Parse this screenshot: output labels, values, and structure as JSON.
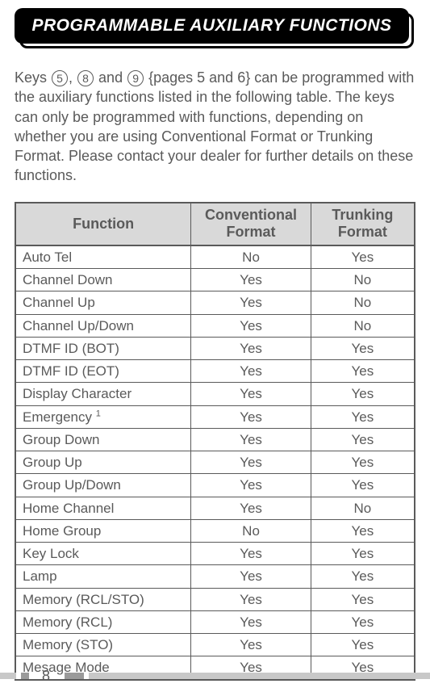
{
  "title": "PROGRAMMABLE AUXILIARY FUNCTIONS",
  "intro": {
    "prefix": "Keys ",
    "k1": "5",
    "sep1": ", ",
    "k2": "8",
    "sep2": " and ",
    "k3": "9",
    "suffix": " {pages 5 and 6} can be programmed with the auxiliary functions listed in the following table. The keys can only be programmed with functions, depending on whether you are using Conventional Format or Trunking Format.  Please contact your dealer for further details on these functions."
  },
  "table": {
    "headers": {
      "function": "Function",
      "conventional_l1": "Conventional",
      "conventional_l2": "Format",
      "trunking_l1": "Trunking",
      "trunking_l2": "Format"
    },
    "rows": [
      {
        "fn": "Auto Tel",
        "conv": "No",
        "trunk": "Yes"
      },
      {
        "fn": "Channel Down",
        "conv": "Yes",
        "trunk": "No"
      },
      {
        "fn": "Channel Up",
        "conv": "Yes",
        "trunk": "No"
      },
      {
        "fn": "Channel Up/Down",
        "conv": "Yes",
        "trunk": "No"
      },
      {
        "fn": "DTMF ID (BOT)",
        "conv": "Yes",
        "trunk": "Yes"
      },
      {
        "fn": "DTMF ID (EOT)",
        "conv": "Yes",
        "trunk": "Yes"
      },
      {
        "fn": "Display Character",
        "conv": "Yes",
        "trunk": "Yes"
      },
      {
        "fn": "Emergency ",
        "sup": "1",
        "conv": "Yes",
        "trunk": "Yes"
      },
      {
        "fn": "Group Down",
        "conv": "Yes",
        "trunk": "Yes"
      },
      {
        "fn": "Group Up",
        "conv": "Yes",
        "trunk": "Yes"
      },
      {
        "fn": "Group Up/Down",
        "conv": "Yes",
        "trunk": "Yes"
      },
      {
        "fn": "Home Channel",
        "conv": "Yes",
        "trunk": "No"
      },
      {
        "fn": "Home Group",
        "conv": "No",
        "trunk": "Yes"
      },
      {
        "fn": "Key Lock",
        "conv": "Yes",
        "trunk": "Yes"
      },
      {
        "fn": "Lamp",
        "conv": "Yes",
        "trunk": "Yes"
      },
      {
        "fn": "Memory (RCL/STO)",
        "conv": "Yes",
        "trunk": "Yes"
      },
      {
        "fn": "Memory (RCL)",
        "conv": "Yes",
        "trunk": "Yes"
      },
      {
        "fn": "Memory (STO)",
        "conv": "Yes",
        "trunk": "Yes"
      },
      {
        "fn": "Mesage Mode",
        "conv": "Yes",
        "trunk": "Yes"
      }
    ]
  },
  "page_number": "8"
}
